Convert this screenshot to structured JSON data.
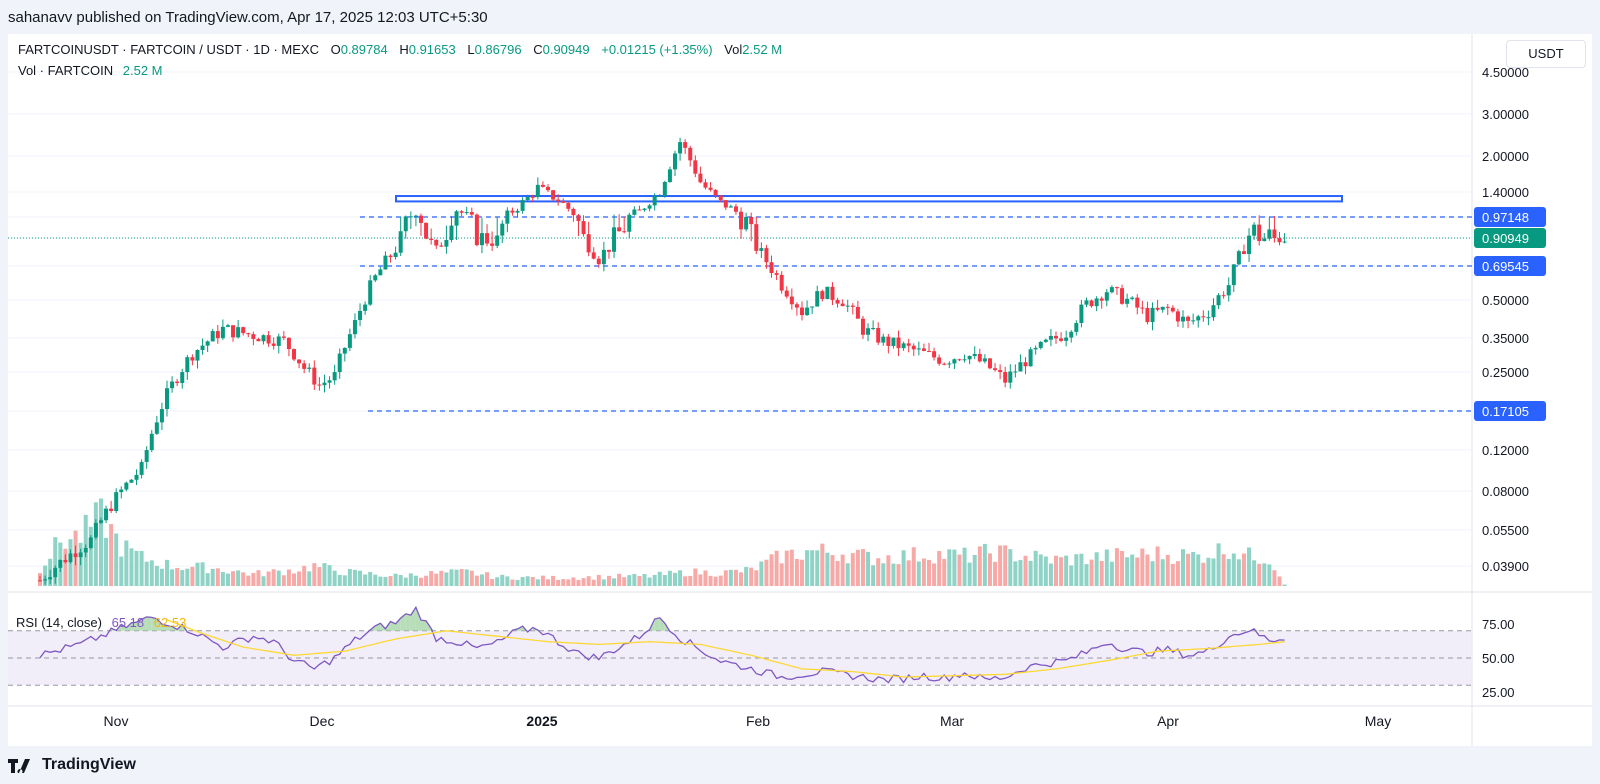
{
  "header": {
    "publish_text": "sahanavv published on TradingView.com, Apr 17, 2025 12:03 UTC+5:30"
  },
  "legend": {
    "symbol": "FARTCOINUSDT · FARTCOIN / USDT · 1D · MEXC",
    "o_label": "O",
    "o_value": "0.89784",
    "h_label": "H",
    "h_value": "0.91653",
    "l_label": "L",
    "l_value": "0.86796",
    "c_label": "C",
    "c_value": "0.90949",
    "change": "+0.01215 (+1.35%)",
    "vol_label": "Vol",
    "vol_value": "2.52 M",
    "vol_line_label": "Vol · FARTCOIN",
    "vol_line_value": "2.52 M"
  },
  "currency_button": "USDT",
  "rsi_legend": {
    "label": "RSI (14, close)",
    "rsi_value": "65.18",
    "ma_value": "62.53"
  },
  "footer": {
    "brand": "TradingView"
  },
  "colors": {
    "up": "#089981",
    "down": "#f23645",
    "rsi_line": "#7e57c2",
    "rsi_ma": "#fdd835",
    "levels": "#2962ff"
  },
  "chart_data": {
    "type": "candlestick",
    "price_scale": "log",
    "y_ticks": [
      "4.50000",
      "3.00000",
      "2.00000",
      "1.40000",
      "0.97148",
      "0.90949",
      "0.69545",
      "0.50000",
      "0.35000",
      "0.25000",
      "0.17105",
      "0.12000",
      "0.08000",
      "0.05500",
      "0.03900"
    ],
    "x_ticks": [
      "Nov",
      "Dec",
      "2025",
      "Feb",
      "Mar",
      "Apr",
      "May"
    ],
    "levels": [
      {
        "value": 0.97148,
        "label": "0.97148",
        "style": "dashed"
      },
      {
        "value": 0.69545,
        "label": "0.69545",
        "style": "dashed"
      },
      {
        "value": 0.17105,
        "label": "0.17105",
        "style": "dashed"
      }
    ],
    "last_price": {
      "value": 0.90949,
      "label": "0.90949"
    },
    "resistance_zone": {
      "low": 1.22,
      "high": 1.32
    },
    "rsi_ticks": [
      "75.00",
      "50.00",
      "25.00"
    ],
    "price_waypoints": [
      [
        0,
        0.034
      ],
      [
        10,
        0.05
      ],
      [
        20,
        0.1
      ],
      [
        30,
        0.3
      ],
      [
        36,
        0.38
      ],
      [
        42,
        0.36
      ],
      [
        48,
        0.34
      ],
      [
        52,
        0.26
      ],
      [
        55,
        0.22
      ],
      [
        58,
        0.24
      ],
      [
        62,
        0.4
      ],
      [
        66,
        0.62
      ],
      [
        70,
        0.82
      ],
      [
        74,
        1.05
      ],
      [
        78,
        0.8
      ],
      [
        82,
        1.08
      ],
      [
        86,
        0.9
      ],
      [
        90,
        0.88
      ],
      [
        94,
        1.12
      ],
      [
        98,
        1.45
      ],
      [
        102,
        1.25
      ],
      [
        106,
        0.95
      ],
      [
        110,
        0.75
      ],
      [
        114,
        0.92
      ],
      [
        118,
        1.05
      ],
      [
        122,
        1.4
      ],
      [
        126,
        2.3
      ],
      [
        130,
        1.55
      ],
      [
        134,
        1.2
      ],
      [
        138,
        1.0
      ],
      [
        142,
        0.78
      ],
      [
        146,
        0.58
      ],
      [
        150,
        0.45
      ],
      [
        154,
        0.54
      ],
      [
        158,
        0.5
      ],
      [
        162,
        0.38
      ],
      [
        166,
        0.34
      ],
      [
        170,
        0.32
      ],
      [
        174,
        0.3
      ],
      [
        178,
        0.28
      ],
      [
        182,
        0.3
      ],
      [
        186,
        0.27
      ],
      [
        190,
        0.23
      ],
      [
        194,
        0.28
      ],
      [
        198,
        0.33
      ],
      [
        202,
        0.37
      ],
      [
        206,
        0.48
      ],
      [
        210,
        0.55
      ],
      [
        214,
        0.5
      ],
      [
        218,
        0.43
      ],
      [
        222,
        0.46
      ],
      [
        226,
        0.4
      ],
      [
        230,
        0.45
      ],
      [
        234,
        0.58
      ],
      [
        238,
        0.92
      ],
      [
        242,
        0.9
      ],
      [
        245,
        0.90949
      ]
    ],
    "rsi_waypoints": [
      [
        0,
        52
      ],
      [
        8,
        60
      ],
      [
        16,
        72
      ],
      [
        22,
        80
      ],
      [
        26,
        75
      ],
      [
        30,
        70
      ],
      [
        36,
        58
      ],
      [
        42,
        66
      ],
      [
        46,
        62
      ],
      [
        50,
        48
      ],
      [
        54,
        42
      ],
      [
        58,
        50
      ],
      [
        62,
        63
      ],
      [
        66,
        72
      ],
      [
        70,
        76
      ],
      [
        74,
        86
      ],
      [
        78,
        65
      ],
      [
        82,
        62
      ],
      [
        86,
        57
      ],
      [
        90,
        61
      ],
      [
        94,
        70
      ],
      [
        98,
        72
      ],
      [
        102,
        62
      ],
      [
        106,
        53
      ],
      [
        110,
        50
      ],
      [
        114,
        58
      ],
      [
        118,
        66
      ],
      [
        122,
        80
      ],
      [
        126,
        65
      ],
      [
        130,
        56
      ],
      [
        134,
        48
      ],
      [
        138,
        44
      ],
      [
        142,
        40
      ],
      [
        146,
        36
      ],
      [
        150,
        38
      ],
      [
        154,
        40
      ],
      [
        158,
        38
      ],
      [
        162,
        36
      ],
      [
        166,
        34
      ],
      [
        170,
        35
      ],
      [
        174,
        37
      ],
      [
        178,
        35
      ],
      [
        182,
        39
      ],
      [
        186,
        34
      ],
      [
        190,
        36
      ],
      [
        194,
        43
      ],
      [
        198,
        46
      ],
      [
        202,
        48
      ],
      [
        206,
        54
      ],
      [
        210,
        62
      ],
      [
        214,
        56
      ],
      [
        218,
        54
      ],
      [
        222,
        56
      ],
      [
        226,
        52
      ],
      [
        230,
        55
      ],
      [
        234,
        66
      ],
      [
        238,
        71
      ],
      [
        242,
        63
      ],
      [
        245,
        65
      ]
    ],
    "rsi_ma_waypoints": [
      [
        25,
        78
      ],
      [
        32,
        68
      ],
      [
        40,
        58
      ],
      [
        50,
        52
      ],
      [
        60,
        55
      ],
      [
        70,
        64
      ],
      [
        80,
        70
      ],
      [
        90,
        66
      ],
      [
        100,
        62
      ],
      [
        110,
        60
      ],
      [
        120,
        62
      ],
      [
        130,
        60
      ],
      [
        140,
        52
      ],
      [
        150,
        42
      ],
      [
        160,
        40
      ],
      [
        170,
        36
      ],
      [
        180,
        37
      ],
      [
        190,
        38
      ],
      [
        200,
        42
      ],
      [
        210,
        48
      ],
      [
        220,
        55
      ],
      [
        230,
        57
      ],
      [
        240,
        60
      ],
      [
        245,
        62
      ]
    ],
    "volume_waypoints": [
      [
        0,
        18
      ],
      [
        4,
        45
      ],
      [
        8,
        50
      ],
      [
        12,
        70
      ],
      [
        16,
        40
      ],
      [
        20,
        28
      ],
      [
        26,
        20
      ],
      [
        34,
        18
      ],
      [
        42,
        12
      ],
      [
        50,
        16
      ],
      [
        54,
        20
      ],
      [
        60,
        14
      ],
      [
        70,
        10
      ],
      [
        76,
        12
      ],
      [
        84,
        14
      ],
      [
        90,
        9
      ],
      [
        100,
        8
      ],
      [
        110,
        9
      ],
      [
        120,
        10
      ],
      [
        128,
        14
      ],
      [
        134,
        13
      ],
      [
        140,
        16
      ],
      [
        146,
        30
      ],
      [
        152,
        35
      ],
      [
        158,
        33
      ],
      [
        164,
        28
      ],
      [
        170,
        30
      ],
      [
        176,
        32
      ],
      [
        182,
        30
      ],
      [
        188,
        34
      ],
      [
        194,
        30
      ],
      [
        200,
        26
      ],
      [
        206,
        28
      ],
      [
        212,
        30
      ],
      [
        220,
        32
      ],
      [
        228,
        30
      ],
      [
        234,
        38
      ],
      [
        238,
        30
      ],
      [
        242,
        28
      ],
      [
        245,
        2
      ]
    ]
  }
}
